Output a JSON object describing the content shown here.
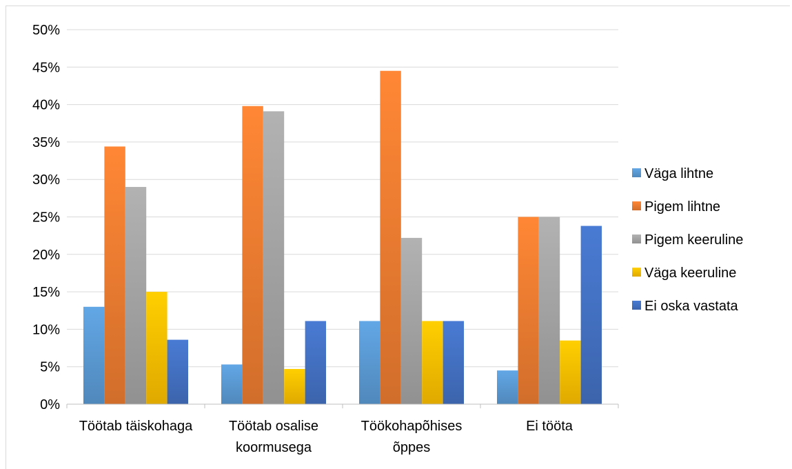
{
  "chart_data": {
    "type": "bar",
    "categories": [
      [
        "Töötab täiskohaga"
      ],
      [
        "Töötab osalise",
        "koormusega"
      ],
      [
        "Töökohapõhises",
        "õppes"
      ],
      [
        "Ei tööta"
      ]
    ],
    "series": [
      {
        "name": "Väga lihtne",
        "color": "#5b9bd5",
        "values": [
          13.0,
          5.3,
          11.1,
          4.5
        ]
      },
      {
        "name": "Pigem lihtne",
        "color": "#ed7d31",
        "values": [
          34.4,
          39.8,
          44.5,
          25.0
        ]
      },
      {
        "name": "Pigem keeruline",
        "color": "#a5a5a5",
        "values": [
          29.0,
          39.1,
          22.2,
          25.0
        ]
      },
      {
        "name": "Väga keeruline",
        "color": "#ffc000",
        "values": [
          15.0,
          4.7,
          11.1,
          8.5
        ]
      },
      {
        "name": "Ei oska vastata",
        "color": "#4472c4",
        "values": [
          8.6,
          11.1,
          11.1,
          23.8
        ]
      }
    ],
    "ylim": [
      0,
      50
    ],
    "yticks": [
      "0%",
      "5%",
      "10%",
      "15%",
      "20%",
      "25%",
      "30%",
      "35%",
      "40%",
      "45%",
      "50%"
    ],
    "grid": true,
    "legend_position": "right",
    "title": "",
    "xlabel": "",
    "ylabel": ""
  }
}
